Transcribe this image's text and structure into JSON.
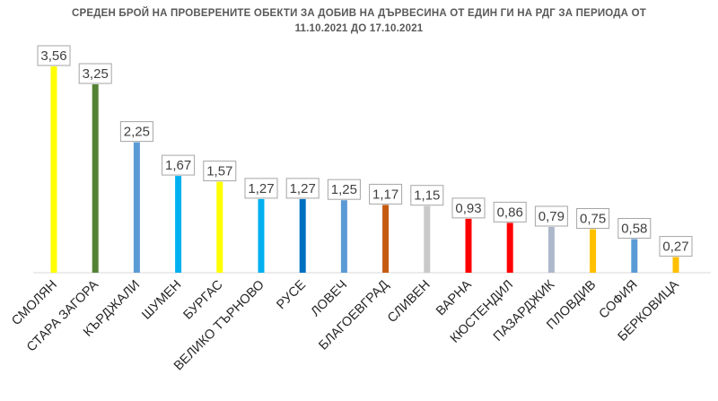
{
  "chart_data": {
    "type": "bar",
    "title_line1": "СРЕДЕН БРОЙ НА ПРОВЕРЕНИТЕ ОБЕКТИ ЗА ДОБИВ НА ДЪРВЕСИНА ОТ ЕДИН ГИ НА РДГ ЗА ПЕРИОДА ОТ",
    "title_line2": "11.10.2021 ДО 17.10.2021",
    "categories": [
      "СМОЛЯН",
      "СТАРА ЗАГОРА",
      "КЪРДЖАЛИ",
      "ШУМЕН",
      "БУРГАС",
      "ВЕЛИКО ТЪРНОВО",
      "РУСЕ",
      "ЛОВЕЧ",
      "БЛАГОЕВГРАД",
      "СЛИВЕН",
      "ВАРНА",
      "КЮСТЕНДИЛ",
      "ПАЗАРДЖИК",
      "ПЛОВДИВ",
      "СОФИЯ",
      "БЕРКОВИЦА"
    ],
    "values": [
      3.56,
      3.25,
      2.25,
      1.67,
      1.57,
      1.27,
      1.27,
      1.25,
      1.17,
      1.15,
      0.93,
      0.86,
      0.79,
      0.75,
      0.58,
      0.27
    ],
    "value_labels": [
      "3,56",
      "3,25",
      "2,25",
      "1,67",
      "1,57",
      "1,27",
      "1,27",
      "1,25",
      "1,17",
      "1,15",
      "0,93",
      "0,86",
      "0,79",
      "0,75",
      "0,58",
      "0,27"
    ],
    "colors": [
      "#ffff00",
      "#548235",
      "#5b9bd5",
      "#00b0f0",
      "#ffff00",
      "#00b0f0",
      "#0070c0",
      "#5b9bd5",
      "#c55a11",
      "#c9c9c9",
      "#ff0000",
      "#ff0000",
      "#adb9ca",
      "#ffc000",
      "#5b9bd5",
      "#ffc000"
    ],
    "ylim": [
      0,
      3.56
    ],
    "grid": false,
    "legend": "none"
  }
}
